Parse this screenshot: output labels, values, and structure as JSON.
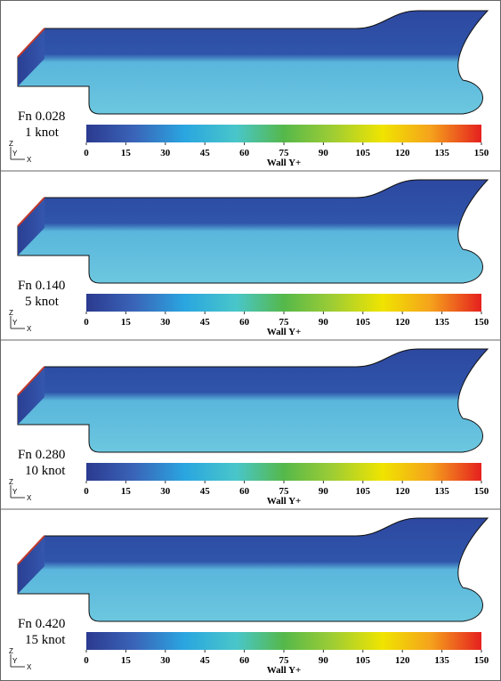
{
  "panels": [
    {
      "fn": "Fn 0.028",
      "speed": "1 knot",
      "triad": {
        "z": "Z",
        "y": "Y",
        "x": "X"
      },
      "colorbar": {
        "ticks": [
          0,
          15,
          30,
          45,
          60,
          75,
          90,
          105,
          120,
          135,
          150
        ],
        "label": "Wall Y+"
      }
    },
    {
      "fn": "Fn 0.140",
      "speed": "5 knot",
      "triad": {
        "z": "Z",
        "y": "Y",
        "x": "X"
      },
      "colorbar": {
        "ticks": [
          0,
          15,
          30,
          45,
          60,
          75,
          90,
          105,
          120,
          135,
          150
        ],
        "label": "Wall Y+"
      }
    },
    {
      "fn": "Fn 0.280",
      "speed": "10 knot",
      "triad": {
        "z": "Z",
        "y": "Y",
        "x": "X"
      },
      "colorbar": {
        "ticks": [
          0,
          15,
          30,
          45,
          60,
          75,
          90,
          105,
          120,
          135,
          150
        ],
        "label": "Wall Y+"
      }
    },
    {
      "fn": "Fn 0.420",
      "speed": "15 knot",
      "triad": {
        "z": "Z",
        "y": "Y",
        "x": "X"
      },
      "colorbar": {
        "ticks": [
          0,
          15,
          30,
          45,
          60,
          75,
          90,
          105,
          120,
          135,
          150
        ],
        "label": "Wall Y+"
      }
    }
  ]
}
